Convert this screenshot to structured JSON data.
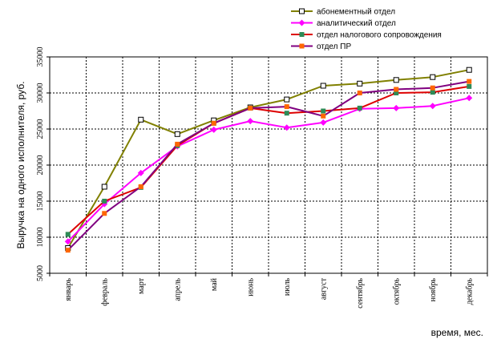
{
  "chart_data": {
    "type": "line",
    "categories": [
      "январь",
      "февраль",
      "март",
      "апрель",
      "май",
      "июнь",
      "июль",
      "август",
      "сентябрь",
      "октябрь",
      "ноябрь",
      "декабрь"
    ],
    "series": [
      {
        "name": "абонементный отдел",
        "color": "#808000",
        "marker": "square-open",
        "values": [
          8500,
          17000,
          26300,
          24300,
          26200,
          28000,
          29100,
          31000,
          31300,
          31800,
          32200,
          33200
        ]
      },
      {
        "name": "аналитический отдел",
        "color": "#ff00ff",
        "marker": "diamond",
        "values": [
          9400,
          14600,
          18900,
          22600,
          24900,
          26100,
          25200,
          25900,
          27800,
          27900,
          28200,
          29300
        ]
      },
      {
        "name": "отдел налогового сопровождения",
        "color": "#dd0000",
        "marker": "square-green",
        "values": [
          10400,
          15000,
          16900,
          22700,
          25800,
          27900,
          27200,
          27500,
          27900,
          30000,
          30100,
          30900
        ]
      },
      {
        "name": "отдел ПР",
        "color": "#800080",
        "marker": "square-orange",
        "values": [
          8200,
          13300,
          17000,
          22900,
          25800,
          27900,
          28100,
          26800,
          30000,
          30500,
          30700,
          31600
        ]
      }
    ],
    "ylim": [
      5000,
      35000
    ],
    "yticks": [
      5000,
      10000,
      15000,
      20000,
      25000,
      30000,
      35000
    ],
    "ylabel": "Выручка на одного исполнителя, руб.",
    "xlabel": "время, мес.",
    "grid": true,
    "legend_position": "top-right"
  }
}
